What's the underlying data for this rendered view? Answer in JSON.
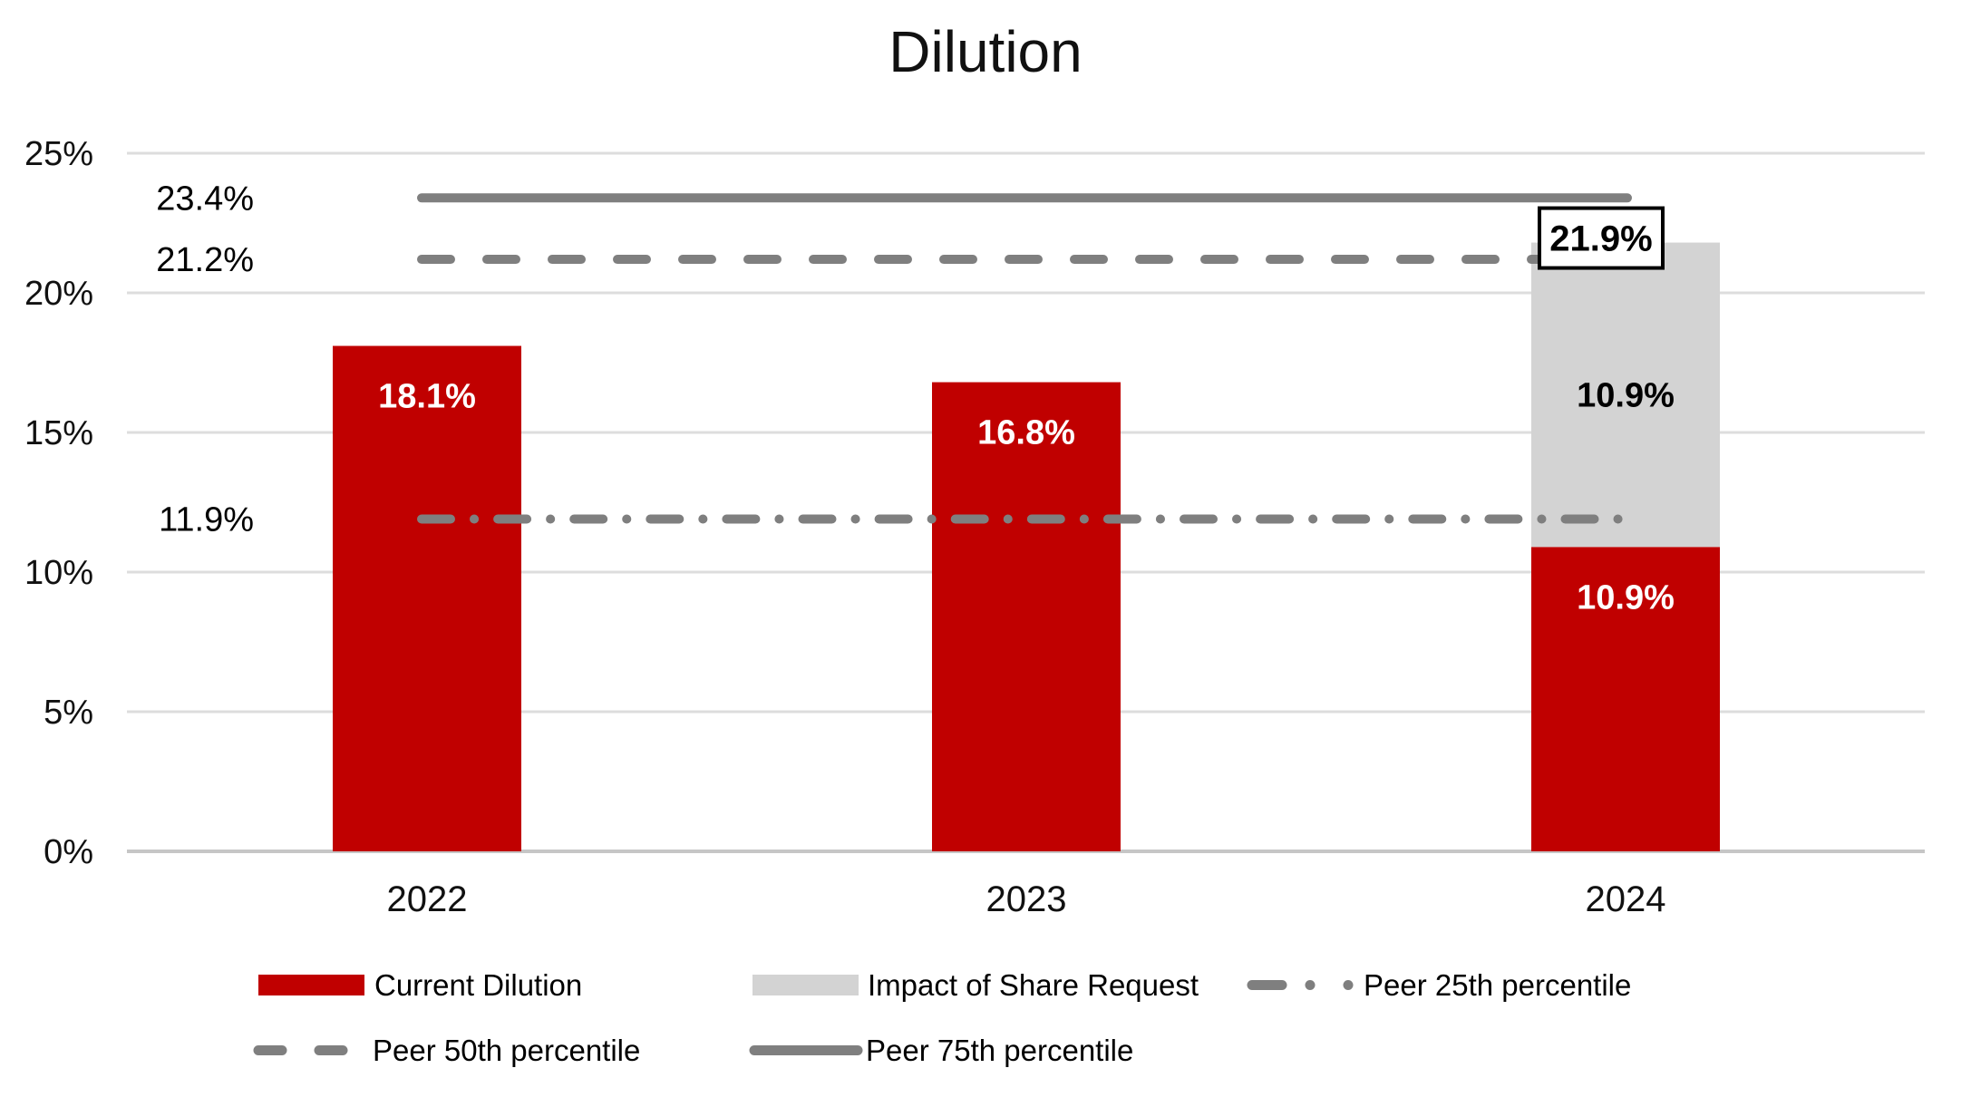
{
  "chart_data": {
    "type": "bar",
    "title": "Dilution",
    "categories": [
      "2022",
      "2023",
      "2024"
    ],
    "series": [
      {
        "name": "Current Dilution",
        "type": "bar",
        "color": "#C00000",
        "values": [
          18.1,
          16.8,
          10.9
        ],
        "labels": [
          "18.1%",
          "16.8%",
          "10.9%"
        ],
        "label_color": "#ffffff"
      },
      {
        "name": "Impact of Share Request",
        "type": "bar-stacked",
        "color": "#D3D3D3",
        "values": [
          null,
          null,
          10.9
        ],
        "labels": [
          null,
          null,
          "10.9%"
        ],
        "label_color": "#000000"
      }
    ],
    "total_labels": [
      null,
      null,
      "21.9%"
    ],
    "lines": [
      {
        "name": "Peer 25th percentile",
        "style": "dashdot",
        "value": 11.9,
        "label": "11.9%"
      },
      {
        "name": "Peer 50th percentile",
        "style": "dashed",
        "value": 21.2,
        "label": "21.2%"
      },
      {
        "name": "Peer 75th percentile",
        "style": "solid",
        "value": 23.4,
        "label": "23.4%"
      }
    ],
    "line_color": "#7F7F7F",
    "y_axis": {
      "min": 0,
      "max": 25,
      "tick_step": 5,
      "tick_labels": [
        "0%",
        "5%",
        "10%",
        "15%",
        "20%",
        "25%"
      ]
    },
    "grid": "horizontal",
    "legend_position": "bottom"
  }
}
